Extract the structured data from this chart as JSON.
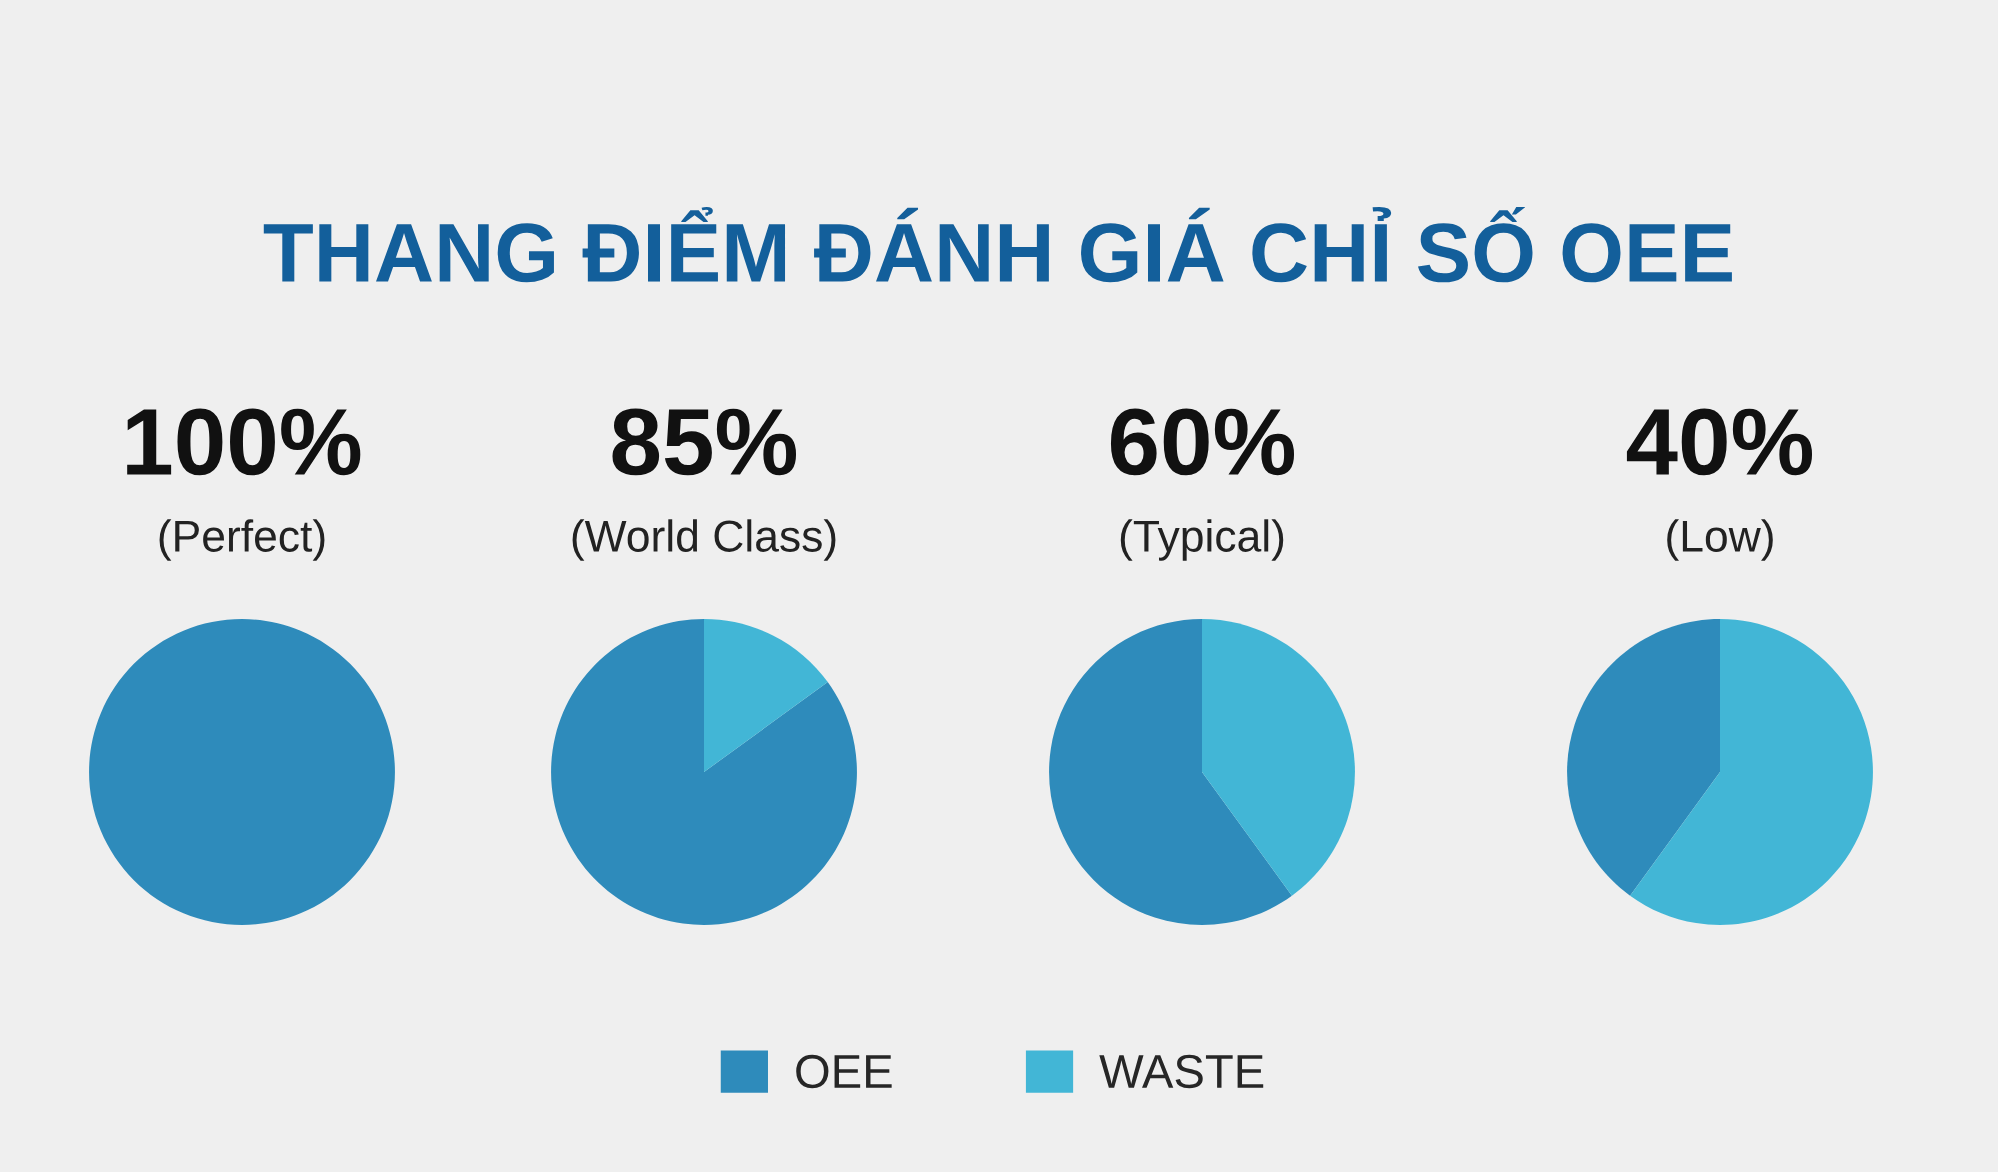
{
  "chart_data": [
    {
      "type": "pie",
      "title": "100%",
      "subtitle": "(Perfect)",
      "categories": [
        null
      ],
      "values": [
        100
      ],
      "colors": [
        "#2e8bbb"
      ],
      "annotations": [
        "THANG ĐIỂM ĐÁNH GIÁ CHỈ SỐ OEE"
      ]
    },
    {
      "type": "pie",
      "title": "85%",
      "subtitle": "(World Class)",
      "categories": [
        "OEE",
        "WASTE"
      ],
      "values": [
        85,
        15
      ],
      "colors": [
        "#2e8bbb",
        "#42b6d6"
      ],
      "legend": "bottom"
    },
    {
      "type": "pie",
      "title": "60%",
      "subtitle": "(Typical)",
      "categories": [
        null,
        null
      ],
      "values": [
        60,
        40
      ],
      "colors": [
        "#2e8bbb",
        "#42b6d6"
      ]
    },
    {
      "type": "pie",
      "title": "40%",
      "subtitle": "(Low)",
      "categories": [
        null,
        null
      ],
      "values": [
        40,
        60
      ],
      "colors": [
        "#2e8bbb",
        "#42b6d6"
      ]
    }
  ]
}
